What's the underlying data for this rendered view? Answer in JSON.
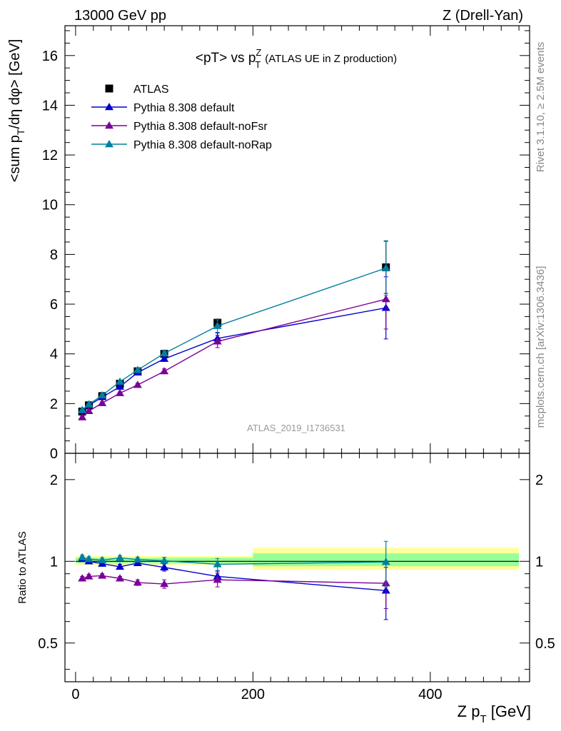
{
  "header": {
    "left": "13000 GeV pp",
    "right": "Z (Drell-Yan)"
  },
  "title": {
    "main": "<pT> vs p",
    "sup": "Z",
    "sub": "T",
    "paren": "(ATLAS UE in Z production)"
  },
  "ylabel_main": {
    "p1": "<sum p",
    "s1": "T",
    "p2": "/dη dφ> [GeV]"
  },
  "ylabel_ratio": "Ratio to ATLAS",
  "xlabel": {
    "p1": "Z p",
    "s1": "T",
    "p2": " [GeV]"
  },
  "side_labels": {
    "rivet": "Rivet 3.1.10, ≥ 2.5M events",
    "mcplots": "mcplots.cern.ch [arXiv:1306.3436]"
  },
  "watermark": "ATLAS_2019_I1736531",
  "colors": {
    "data": "#000000",
    "default": "#0000cc",
    "noFsr": "#7b0099",
    "noRap": "#0080a0",
    "band_outer": "#ffff99",
    "band_inner": "#99ff99"
  },
  "chart_data": [
    {
      "type": "scatter",
      "panel": "main",
      "xlim": [
        -12,
        512
      ],
      "ylim": [
        0,
        17.2
      ],
      "x_ticks": [
        0,
        200,
        400
      ],
      "y_ticks": [
        0,
        2,
        4,
        6,
        8,
        10,
        12,
        14,
        16
      ],
      "y_tick_labels": [
        "0",
        "2",
        "4",
        "6",
        "8",
        "10",
        "12",
        "14",
        "16"
      ],
      "legend_position": "top-left",
      "series": [
        {
          "name": "ATLAS",
          "marker": "square",
          "color_key": "data",
          "x": [
            7.5,
            15,
            30,
            50,
            70,
            100,
            160,
            350
          ],
          "y": [
            1.68,
            1.93,
            2.3,
            2.8,
            3.3,
            4.0,
            5.25,
            7.48
          ],
          "yerr": [
            0.04,
            0.05,
            0.06,
            0.07,
            0.09,
            0.11,
            0.15,
            1.05
          ]
        },
        {
          "name": "Pythia 8.308 default",
          "marker": "triangle",
          "color_key": "default",
          "x": [
            7.5,
            15,
            30,
            50,
            70,
            100,
            160,
            350
          ],
          "y": [
            1.72,
            1.93,
            2.26,
            2.68,
            3.25,
            3.8,
            4.62,
            5.85
          ],
          "yerr": [
            0.03,
            0.03,
            0.04,
            0.05,
            0.07,
            0.1,
            0.22,
            1.25
          ]
        },
        {
          "name": "Pythia 8.308 default-noFsr",
          "marker": "triangle",
          "color_key": "noFsr",
          "x": [
            7.5,
            15,
            30,
            50,
            70,
            100,
            160,
            350
          ],
          "y": [
            1.45,
            1.7,
            2.02,
            2.42,
            2.75,
            3.3,
            4.5,
            6.2
          ],
          "yerr": [
            0.03,
            0.03,
            0.04,
            0.05,
            0.07,
            0.1,
            0.25,
            1.2
          ]
        },
        {
          "name": "Pythia 8.308 default-noRap",
          "marker": "triangle",
          "color_key": "noRap",
          "x": [
            7.5,
            15,
            30,
            50,
            70,
            100,
            160,
            350
          ],
          "y": [
            1.74,
            1.97,
            2.33,
            2.88,
            3.35,
            4.02,
            5.12,
            7.45
          ],
          "yerr": [
            0.03,
            0.03,
            0.04,
            0.05,
            0.07,
            0.1,
            0.25,
            1.1
          ]
        }
      ]
    },
    {
      "type": "scatter",
      "panel": "ratio",
      "scale": "log",
      "xlim": [
        -12,
        512
      ],
      "ylim": [
        0.36,
        2.5
      ],
      "x_ticks": [
        0,
        200,
        400
      ],
      "x_tick_labels": [
        "0",
        "200",
        "400"
      ],
      "y_ticks": [
        0.5,
        1,
        2
      ],
      "y_tick_labels": [
        "0.5",
        "1",
        "2"
      ],
      "reference_line": 1,
      "uncertainty_band": {
        "x_edges": [
          0,
          200,
          500
        ],
        "outer": [
          [
            0.97,
            1.045
          ],
          [
            0.93,
            1.12
          ]
        ],
        "inner": [
          [
            0.985,
            1.03
          ],
          [
            0.96,
            1.07
          ]
        ]
      },
      "series": [
        {
          "name": "Pythia 8.308 default",
          "color_key": "default",
          "x": [
            7.5,
            15,
            30,
            50,
            70,
            100,
            160,
            350
          ],
          "y": [
            1.02,
            1.0,
            0.98,
            0.955,
            0.985,
            0.95,
            0.88,
            0.78
          ],
          "yerr": [
            0.02,
            0.02,
            0.02,
            0.02,
            0.02,
            0.03,
            0.04,
            0.17
          ]
        },
        {
          "name": "Pythia 8.308 default-noFsr",
          "color_key": "noFsr",
          "x": [
            7.5,
            15,
            30,
            50,
            70,
            100,
            160,
            350
          ],
          "y": [
            0.865,
            0.88,
            0.885,
            0.865,
            0.835,
            0.825,
            0.855,
            0.83
          ],
          "yerr": [
            0.015,
            0.015,
            0.015,
            0.015,
            0.02,
            0.03,
            0.05,
            0.16
          ]
        },
        {
          "name": "Pythia 8.308 default-noRap",
          "color_key": "noRap",
          "x": [
            7.5,
            15,
            30,
            50,
            70,
            100,
            160,
            350
          ],
          "y": [
            1.035,
            1.02,
            1.01,
            1.03,
            1.015,
            1.005,
            0.975,
            0.995
          ],
          "yerr": [
            0.02,
            0.02,
            0.02,
            0.02,
            0.02,
            0.03,
            0.05,
            0.19
          ]
        }
      ]
    }
  ]
}
